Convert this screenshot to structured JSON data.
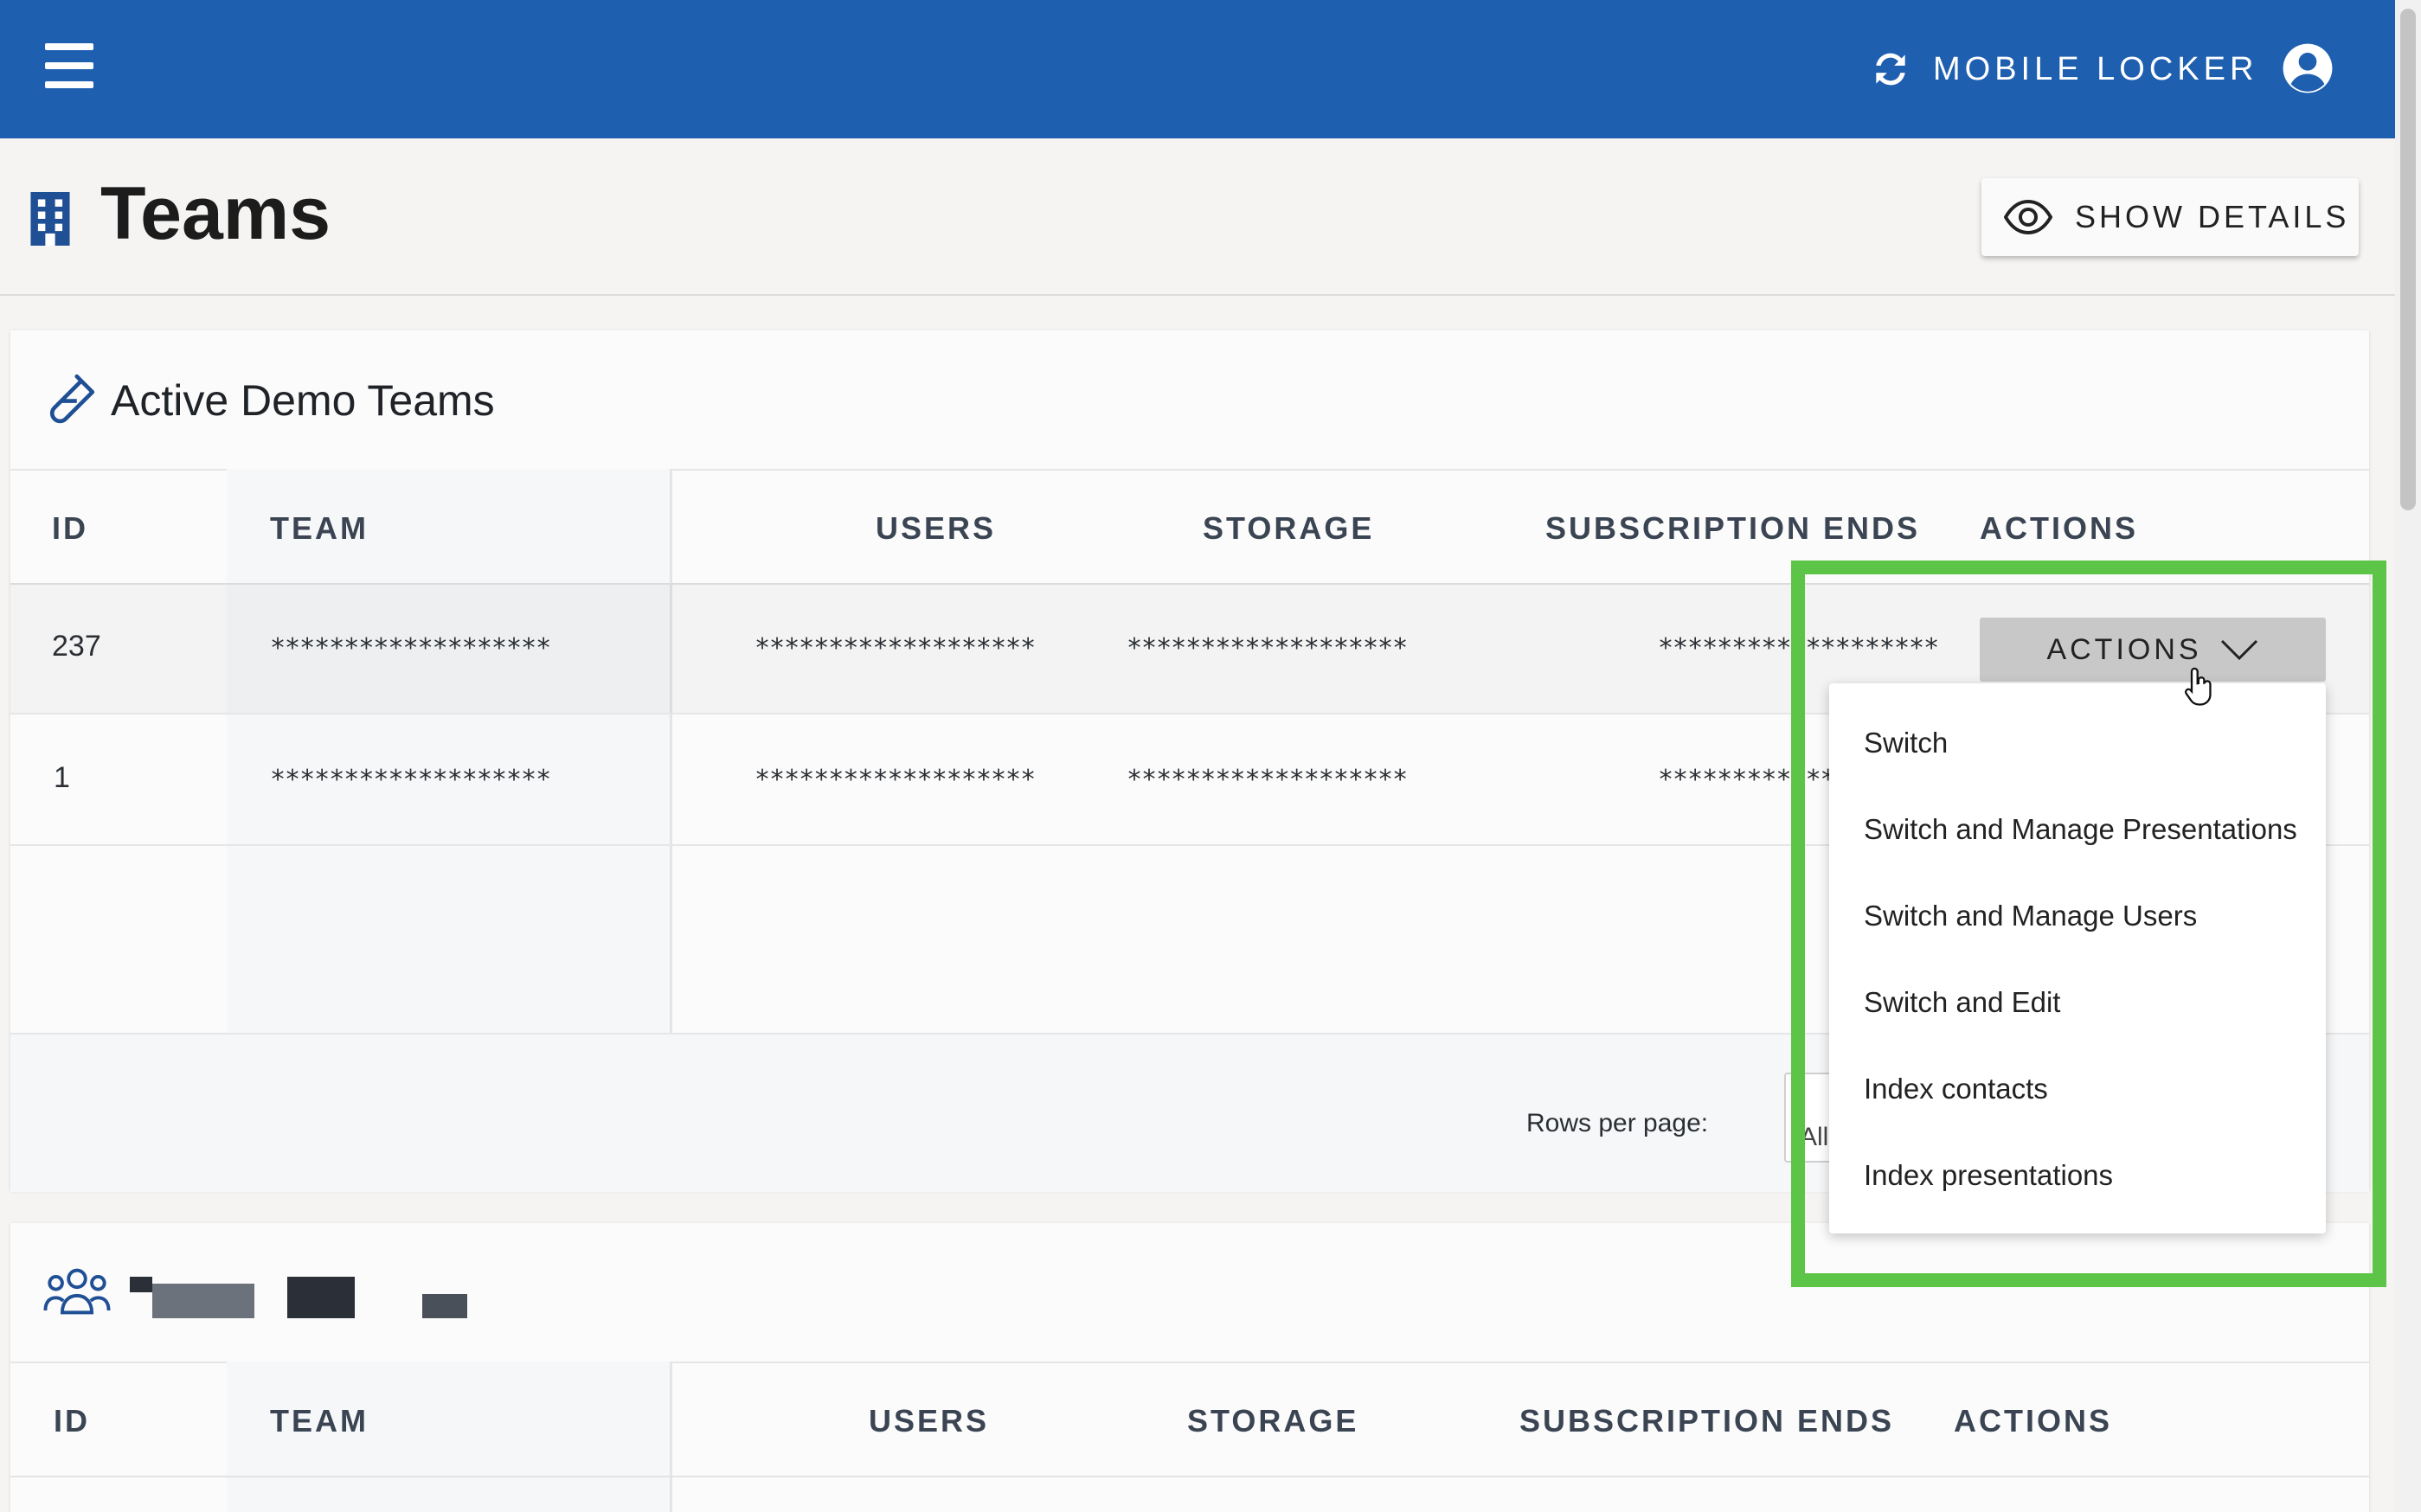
{
  "appbar": {
    "locker_label": "MOBILE LOCKER",
    "color": "#1f5fb0"
  },
  "page": {
    "title": "Teams",
    "show_details_label": "SHOW DETAILS"
  },
  "active_demo": {
    "title": "Active Demo Teams",
    "columns": [
      "ID",
      "TEAM",
      "USERS",
      "STORAGE",
      "SUBSCRIPTION ENDS",
      "ACTIONS"
    ],
    "rows": [
      {
        "id": "237",
        "team": "*******************",
        "users": "*******************",
        "storage": "*******************",
        "subscription": "*******************"
      },
      {
        "id": "1",
        "team": "*******************",
        "users": "*******************",
        "storage": "*******************",
        "subscription": "*******************"
      }
    ],
    "actions_label": "ACTIONS",
    "rows_per_page_label": "Rows per page:",
    "rows_per_page_value": "All"
  },
  "second_table": {
    "columns": [
      "ID",
      "TEAM",
      "USERS",
      "STORAGE",
      "SUBSCRIPTION ENDS",
      "ACTIONS"
    ]
  },
  "actions_menu": {
    "items": [
      "Switch",
      "Switch and Manage Presentations",
      "Switch and Manage Users",
      "Switch and Edit",
      "Index contacts",
      "Index presentations"
    ]
  },
  "highlight_color": "#5cc547"
}
